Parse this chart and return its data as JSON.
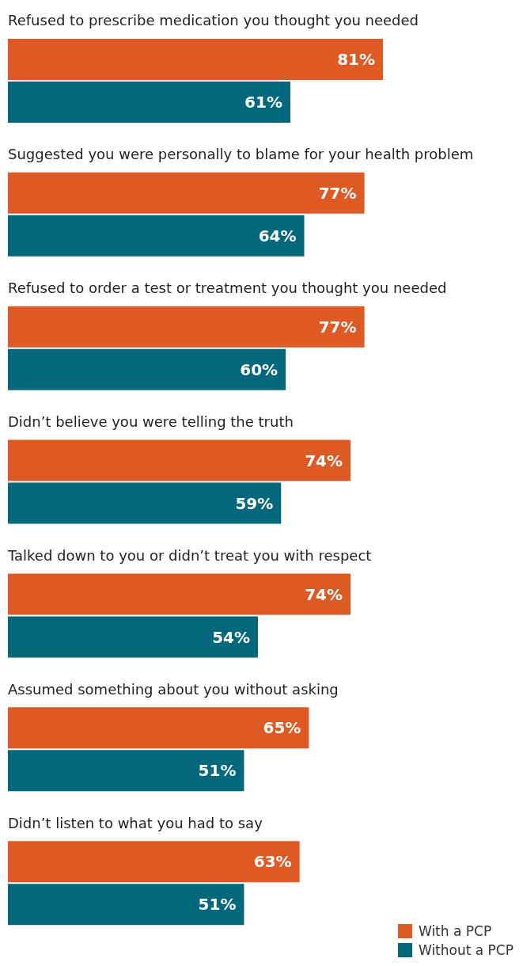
{
  "chart_data": {
    "type": "bar",
    "orientation": "horizontal",
    "categories": [
      "Refused to prescribe medication you thought you needed",
      "Suggested you were personally to blame for your health problem",
      "Refused to order a test or treatment you thought you needed",
      "Didn’t believe you were telling the truth",
      "Talked down to you or didn’t treat you with respect",
      "Assumed something about you without asking",
      "Didn’t listen to what you had to say"
    ],
    "series": [
      {
        "name": "With a PCP",
        "color": "#dd5a24",
        "values": [
          81,
          77,
          77,
          74,
          74,
          65,
          63
        ],
        "value_labels": [
          "81%",
          "77%",
          "77%",
          "74%",
          "74%",
          "65%",
          "63%"
        ]
      },
      {
        "name": "Without a PCP",
        "color": "#03687b",
        "values": [
          61,
          64,
          60,
          59,
          54,
          51,
          51
        ],
        "value_labels": [
          "61%",
          "64%",
          "60%",
          "59%",
          "54%",
          "51%",
          "51%"
        ]
      }
    ],
    "legend": "bottom right"
  }
}
